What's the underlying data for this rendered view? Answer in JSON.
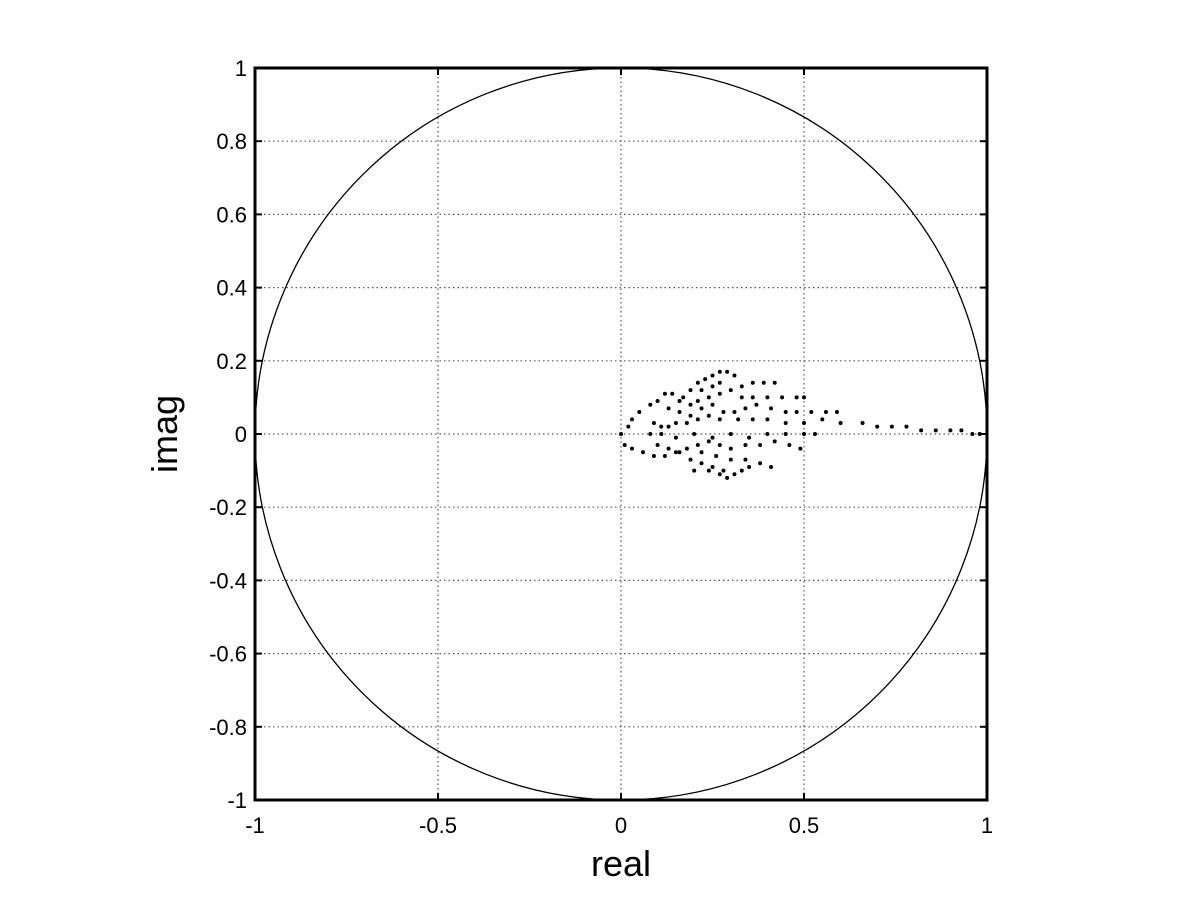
{
  "chart_data": {
    "type": "scatter",
    "title": "",
    "xlabel": "real",
    "ylabel": "imag",
    "xlim": [
      -1,
      1
    ],
    "ylim": [
      -1,
      1
    ],
    "grid": true,
    "grid_style": "dotted",
    "xticks": [
      -1,
      -0.5,
      0,
      0.5,
      1
    ],
    "xtick_labels": [
      "-1",
      "-0.5",
      "0",
      "0.5",
      "1"
    ],
    "yticks": [
      1,
      0.8,
      0.6,
      0.4,
      0.2,
      0,
      -0.2,
      -0.4,
      -0.6,
      -0.8,
      -1
    ],
    "ytick_labels": [
      "1",
      "0.8",
      "0.6",
      "0.4",
      "0.2",
      "0",
      "-0.2",
      "-0.4",
      "-0.6",
      "-0.8",
      "-1"
    ],
    "reference_curve": {
      "type": "unit-circle",
      "center": [
        0,
        0
      ],
      "radius": 1
    },
    "marker": "dot",
    "colors": {
      "points": "#000000",
      "axes": "#000000",
      "grid": "#555555",
      "circle": "#000000"
    },
    "points": [
      [
        0.0,
        0.0
      ],
      [
        0.02,
        0.02
      ],
      [
        0.03,
        0.04
      ],
      [
        0.05,
        0.06
      ],
      [
        0.08,
        0.08
      ],
      [
        0.1,
        0.09
      ],
      [
        0.12,
        0.11
      ],
      [
        0.14,
        0.11
      ],
      [
        0.17,
        0.1
      ],
      [
        0.19,
        0.12
      ],
      [
        0.21,
        0.14
      ],
      [
        0.23,
        0.15
      ],
      [
        0.25,
        0.16
      ],
      [
        0.27,
        0.17
      ],
      [
        0.29,
        0.17
      ],
      [
        0.31,
        0.16
      ],
      [
        0.22,
        0.12
      ],
      [
        0.25,
        0.13
      ],
      [
        0.27,
        0.14
      ],
      [
        0.33,
        0.13
      ],
      [
        0.36,
        0.14
      ],
      [
        0.39,
        0.14
      ],
      [
        0.42,
        0.14
      ],
      [
        0.16,
        0.09
      ],
      [
        0.19,
        0.08
      ],
      [
        0.21,
        0.09
      ],
      [
        0.24,
        0.1
      ],
      [
        0.27,
        0.11
      ],
      [
        0.3,
        0.12
      ],
      [
        0.33,
        0.1
      ],
      [
        0.36,
        0.1
      ],
      [
        0.4,
        0.1
      ],
      [
        0.44,
        0.1
      ],
      [
        0.48,
        0.1
      ],
      [
        0.5,
        0.1
      ],
      [
        0.13,
        0.07
      ],
      [
        0.16,
        0.06
      ],
      [
        0.19,
        0.05
      ],
      [
        0.22,
        0.07
      ],
      [
        0.25,
        0.08
      ],
      [
        0.28,
        0.06
      ],
      [
        0.31,
        0.06
      ],
      [
        0.34,
        0.07
      ],
      [
        0.37,
        0.08
      ],
      [
        0.41,
        0.07
      ],
      [
        0.45,
        0.06
      ],
      [
        0.48,
        0.06
      ],
      [
        0.52,
        0.06
      ],
      [
        0.56,
        0.06
      ],
      [
        0.59,
        0.06
      ],
      [
        0.09,
        0.03
      ],
      [
        0.11,
        0.02
      ],
      [
        0.13,
        0.02
      ],
      [
        0.15,
        0.03
      ],
      [
        0.18,
        0.03
      ],
      [
        0.21,
        0.04
      ],
      [
        0.24,
        0.05
      ],
      [
        0.27,
        0.04
      ],
      [
        0.32,
        0.04
      ],
      [
        0.36,
        0.04
      ],
      [
        0.4,
        0.04
      ],
      [
        0.45,
        0.03
      ],
      [
        0.5,
        0.03
      ],
      [
        0.55,
        0.04
      ],
      [
        0.6,
        0.03
      ],
      [
        0.66,
        0.03
      ],
      [
        0.7,
        0.02
      ],
      [
        0.74,
        0.02
      ],
      [
        0.78,
        0.02
      ],
      [
        0.82,
        0.01
      ],
      [
        0.86,
        0.01
      ],
      [
        0.9,
        0.01
      ],
      [
        0.93,
        0.01
      ],
      [
        0.96,
        0.0
      ],
      [
        0.98,
        0.0
      ],
      [
        0.08,
        0.0
      ],
      [
        0.11,
        0.0
      ],
      [
        0.15,
        -0.01
      ],
      [
        0.2,
        0.0
      ],
      [
        0.25,
        -0.01
      ],
      [
        0.3,
        0.0
      ],
      [
        0.35,
        -0.01
      ],
      [
        0.4,
        0.0
      ],
      [
        0.45,
        0.0
      ],
      [
        0.5,
        0.0
      ],
      [
        0.53,
        0.0
      ],
      [
        0.01,
        -0.03
      ],
      [
        0.03,
        -0.04
      ],
      [
        0.06,
        -0.05
      ],
      [
        0.09,
        -0.06
      ],
      [
        0.12,
        -0.06
      ],
      [
        0.15,
        -0.05
      ],
      [
        0.18,
        -0.04
      ],
      [
        0.21,
        -0.03
      ],
      [
        0.24,
        -0.02
      ],
      [
        0.27,
        -0.03
      ],
      [
        0.3,
        -0.04
      ],
      [
        0.34,
        -0.03
      ],
      [
        0.38,
        -0.03
      ],
      [
        0.42,
        -0.02
      ],
      [
        0.46,
        -0.03
      ],
      [
        0.49,
        -0.04
      ],
      [
        0.1,
        -0.03
      ],
      [
        0.13,
        -0.04
      ],
      [
        0.16,
        -0.05
      ],
      [
        0.19,
        -0.07
      ],
      [
        0.22,
        -0.08
      ],
      [
        0.25,
        -0.09
      ],
      [
        0.28,
        -0.1
      ],
      [
        0.31,
        -0.11
      ],
      [
        0.2,
        -0.1
      ],
      [
        0.24,
        -0.1
      ],
      [
        0.27,
        -0.11
      ],
      [
        0.29,
        -0.12
      ],
      [
        0.22,
        -0.05
      ],
      [
        0.26,
        -0.06
      ],
      [
        0.3,
        -0.07
      ],
      [
        0.34,
        -0.07
      ],
      [
        0.38,
        -0.08
      ],
      [
        0.41,
        -0.09
      ],
      [
        0.33,
        -0.1
      ],
      [
        0.35,
        -0.09
      ]
    ]
  }
}
